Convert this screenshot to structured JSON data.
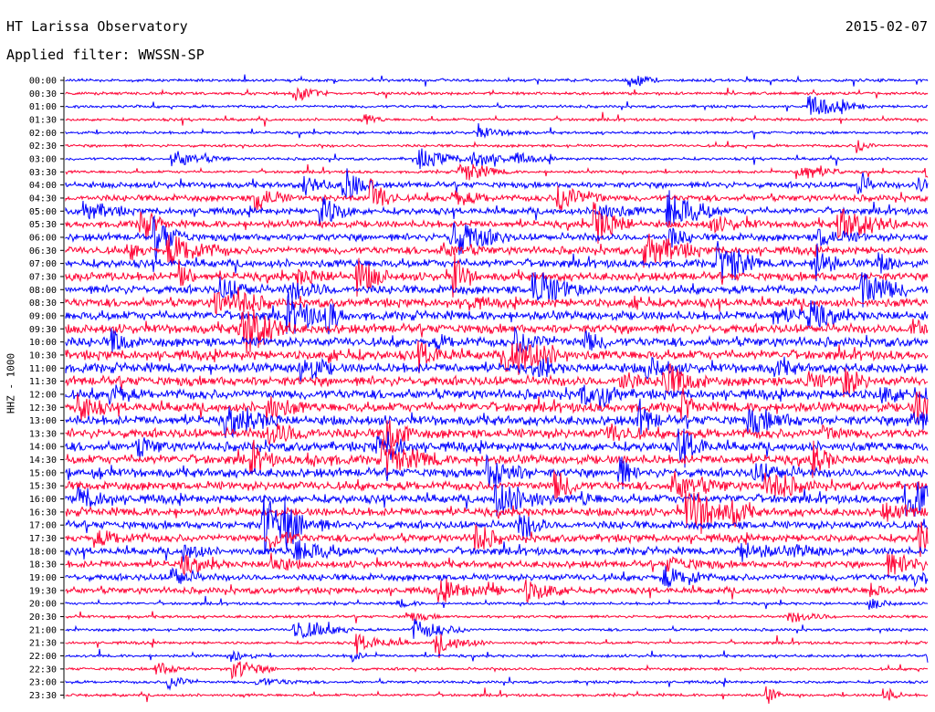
{
  "header": {
    "title": "HT Larissa Observatory",
    "date": "2015-02-07",
    "filter": "Applied filter: WWSSN-SP"
  },
  "chart_data": {
    "type": "line",
    "title": "HT Larissa Observatory",
    "ylabel": "HHZ - 1000",
    "x_span_minutes": 30,
    "traces": [
      "00:00",
      "00:30",
      "01:00",
      "01:30",
      "02:00",
      "02:30",
      "03:00",
      "03:30",
      "04:00",
      "04:30",
      "05:00",
      "05:30",
      "06:00",
      "06:30",
      "07:00",
      "07:30",
      "08:00",
      "08:30",
      "09:00",
      "09:30",
      "10:00",
      "10:30",
      "11:00",
      "11:30",
      "12:00",
      "12:30",
      "13:00",
      "13:30",
      "14:00",
      "14:30",
      "15:00",
      "15:30",
      "16:00",
      "16:30",
      "17:00",
      "17:30",
      "18:00",
      "18:30",
      "19:00",
      "19:30",
      "20:00",
      "20:30",
      "21:00",
      "21:30",
      "22:00",
      "22:30",
      "23:00",
      "23:30"
    ],
    "colors": [
      "#0000ff",
      "#ff0033"
    ],
    "background": "#ffffff"
  }
}
